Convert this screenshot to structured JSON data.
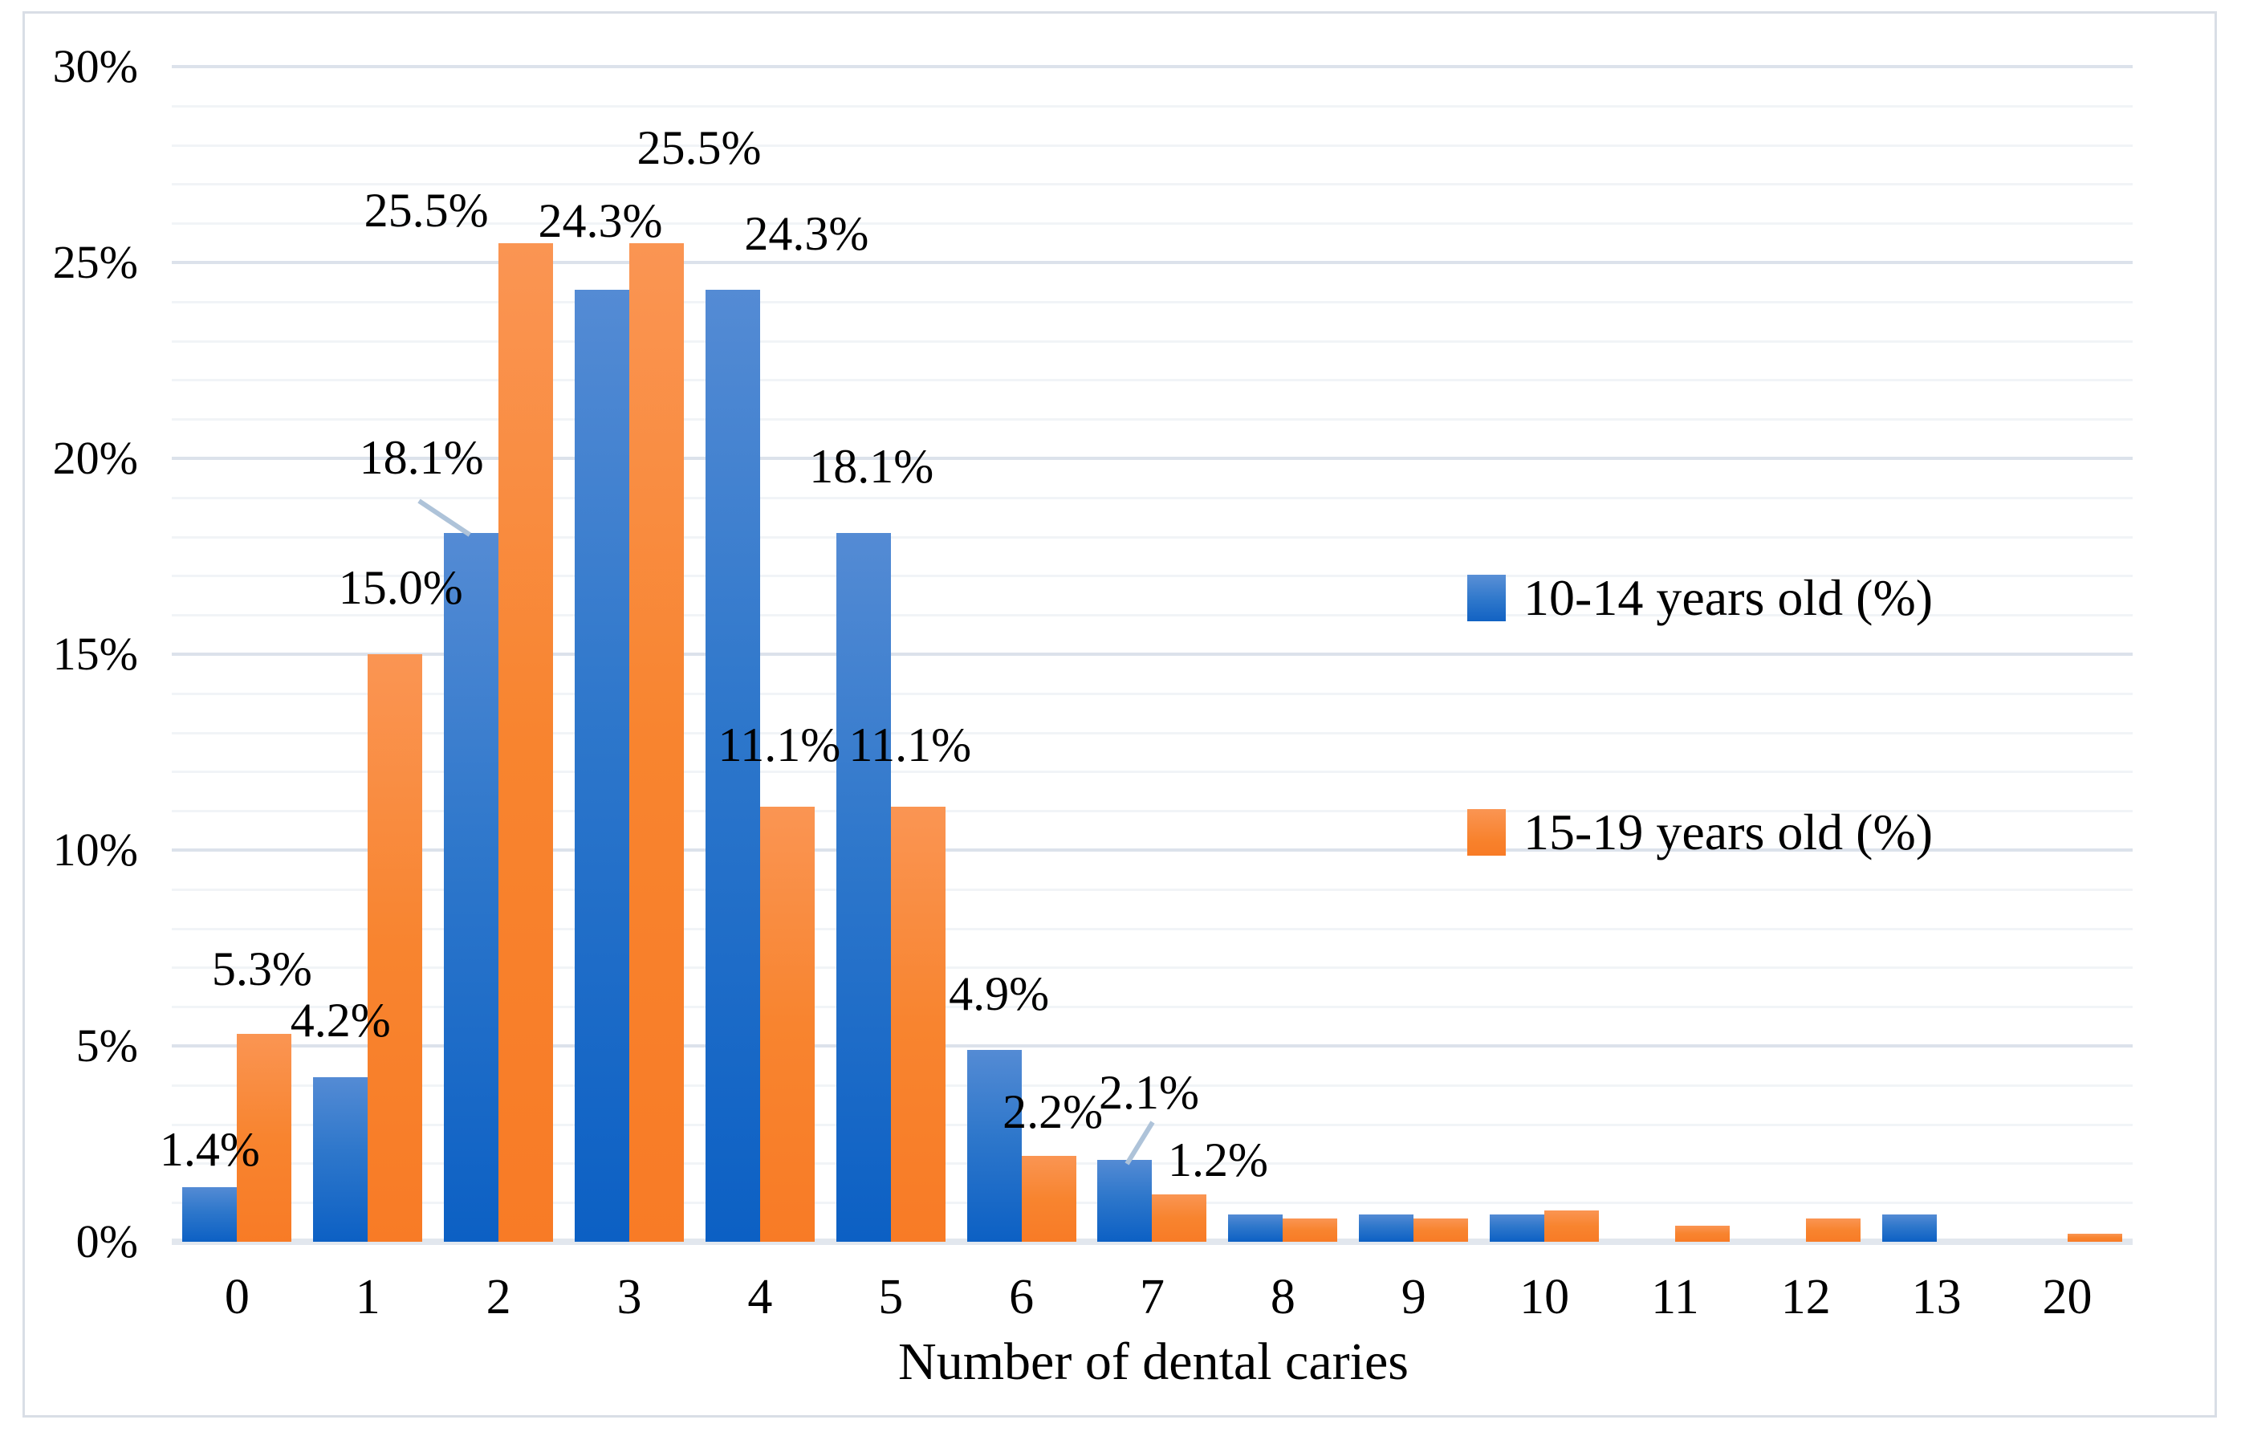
{
  "chart_data": {
    "type": "bar",
    "title": "",
    "xlabel": "Number of dental caries",
    "ylabel": "",
    "categories": [
      "0",
      "1",
      "2",
      "3",
      "4",
      "5",
      "6",
      "7",
      "8",
      "9",
      "10",
      "11",
      "12",
      "13",
      "20"
    ],
    "series": [
      {
        "name": "10-14 years old (%)",
        "color": "#2e77cb",
        "values": [
          1.4,
          4.2,
          18.1,
          24.3,
          24.3,
          18.1,
          4.9,
          2.1,
          0.7,
          0.7,
          0.7,
          0,
          0,
          0.7,
          0
        ]
      },
      {
        "name": "15-19 years old (%)",
        "color": "#f8812b",
        "values": [
          5.3,
          15.0,
          25.5,
          25.5,
          11.1,
          11.1,
          2.2,
          1.2,
          0.6,
          0.6,
          0.8,
          0.4,
          0.6,
          0,
          0.2
        ]
      }
    ],
    "data_labels": [
      {
        "category": "0",
        "series": 0,
        "text": "1.4%"
      },
      {
        "category": "0",
        "series": 1,
        "text": "5.3%"
      },
      {
        "category": "1",
        "series": 0,
        "text": "4.2%"
      },
      {
        "category": "1",
        "series": 1,
        "text": "15.0%"
      },
      {
        "category": "2",
        "series": 0,
        "text": "18.1%",
        "leader": true
      },
      {
        "category": "2",
        "series": 1,
        "text": "25.5%"
      },
      {
        "category": "3",
        "series": 0,
        "text": "24.3%"
      },
      {
        "category": "3",
        "series": 1,
        "text": "25.5%"
      },
      {
        "category": "4",
        "series": 0,
        "text": "24.3%"
      },
      {
        "category": "4",
        "series": 1,
        "text": "11.1%"
      },
      {
        "category": "5",
        "series": 0,
        "text": "18.1%"
      },
      {
        "category": "5",
        "series": 1,
        "text": "11.1%"
      },
      {
        "category": "6",
        "series": 0,
        "text": "4.9%"
      },
      {
        "category": "6",
        "series": 1,
        "text": "2.2%"
      },
      {
        "category": "7",
        "series": 0,
        "text": "2.1%",
        "leader": true
      },
      {
        "category": "7",
        "series": 1,
        "text": "1.2%"
      }
    ],
    "y_ticks": [
      "30%",
      "25%",
      "20%",
      "15%",
      "10%",
      "5%",
      "0%"
    ],
    "ylim": [
      0,
      30
    ],
    "grid": "horizontal; minor every 1%, major every 5%",
    "legend_position": "right-middle",
    "legend_colors": {
      "series0": "#2e77cb",
      "series1": "#f8812b"
    }
  }
}
